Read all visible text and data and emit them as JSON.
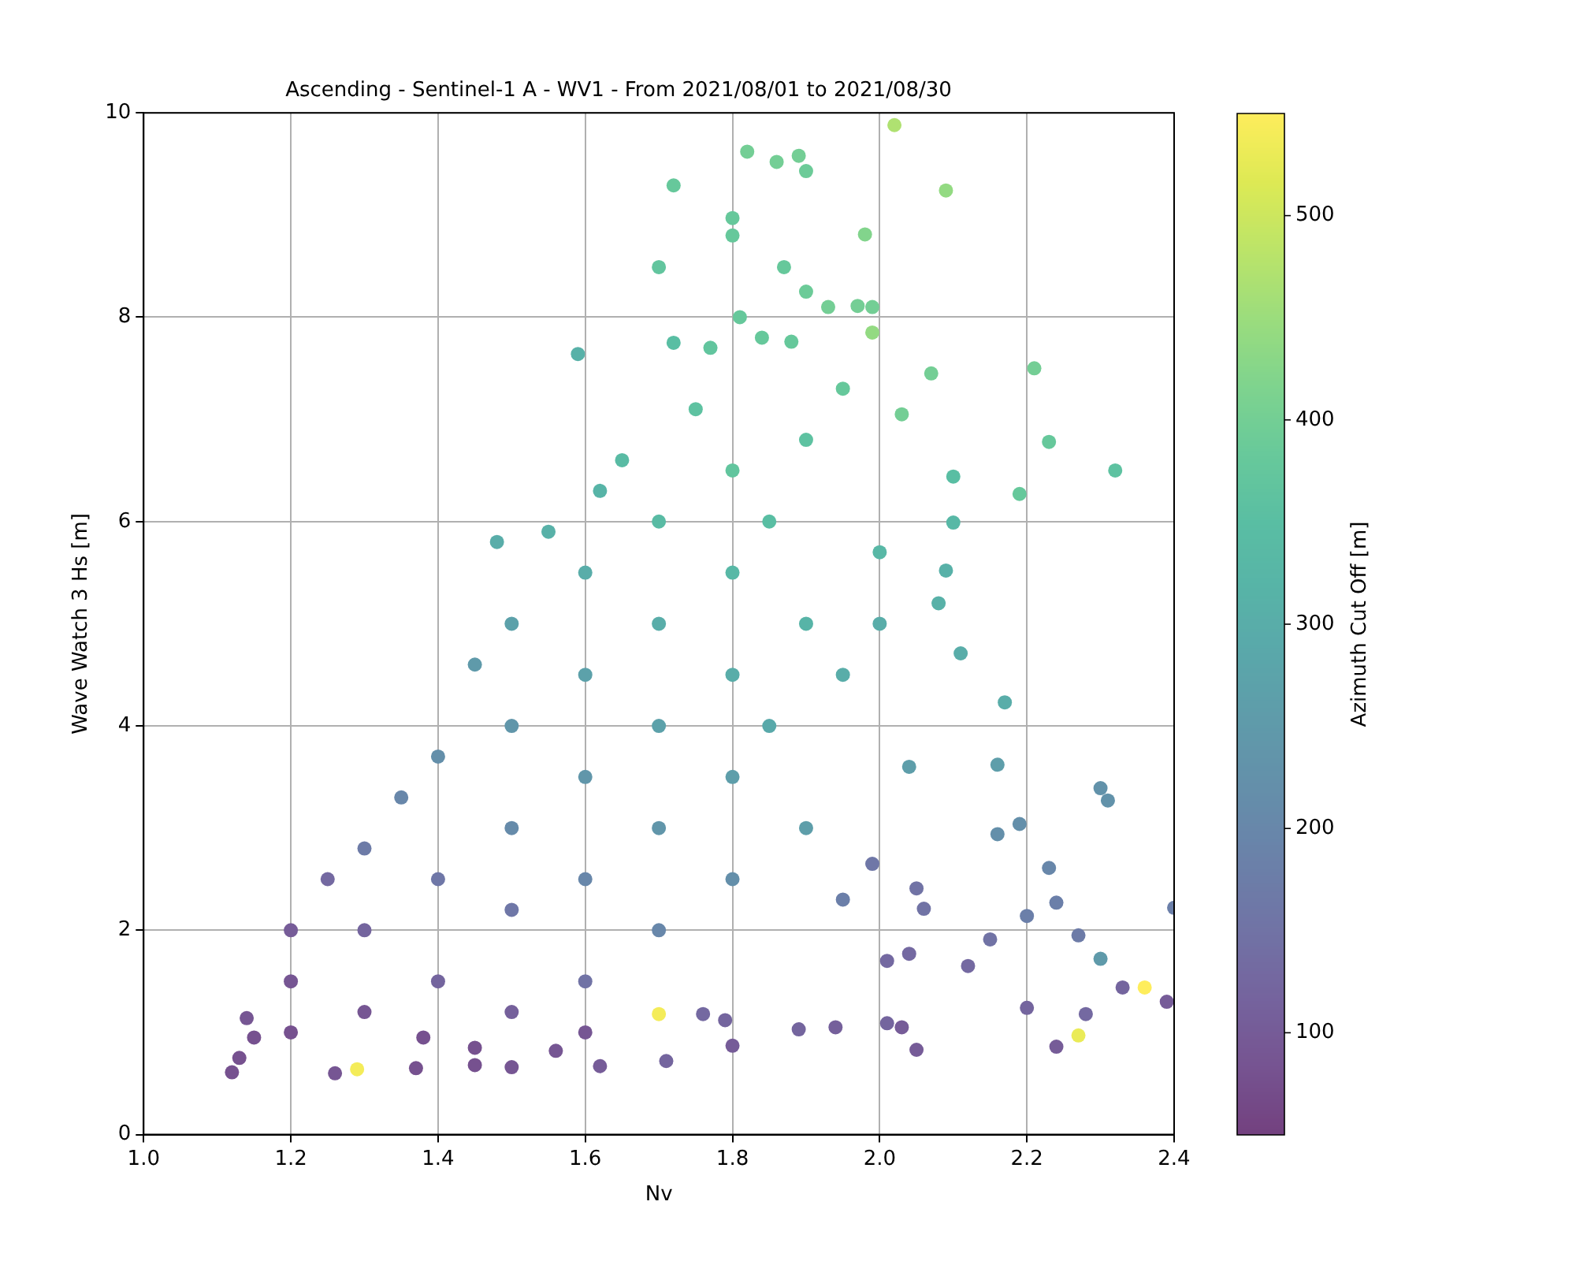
{
  "chart_data": {
    "type": "scatter",
    "title": "Ascending - Sentinel-1 A - WV1 - From 2021/08/01 to 2021/08/30",
    "xlabel": "Nv",
    "ylabel": "Wave Watch 3 Hs [m]",
    "clabel": "Azimuth Cut Off [m]",
    "xlim": [
      1.0,
      2.4
    ],
    "xticks": [
      {
        "value": 1.0,
        "label": "1.0"
      },
      {
        "value": 1.2,
        "label": "1.2"
      },
      {
        "value": 1.4,
        "label": "1.4"
      },
      {
        "value": 1.6,
        "label": "1.6"
      },
      {
        "value": 1.8,
        "label": "1.8"
      },
      {
        "value": 2.0,
        "label": "2.0"
      },
      {
        "value": 2.2,
        "label": "2.2"
      },
      {
        "value": 2.4,
        "label": "2.4"
      }
    ],
    "ylim": [
      0,
      10
    ],
    "yticks": [
      0,
      2,
      4,
      6,
      8,
      10
    ],
    "clim": [
      50,
      550
    ],
    "cticks": [
      100,
      200,
      300,
      400,
      500
    ],
    "grid": true,
    "legend": false,
    "marker": "circle",
    "x": [
      2.02,
      1.82,
      1.86,
      1.89,
      1.9,
      2.09,
      1.72,
      1.8,
      1.8,
      1.7,
      1.87,
      1.98,
      1.9,
      1.97,
      1.93,
      1.99,
      1.81,
      1.84,
      1.88,
      1.99,
      1.77,
      1.59,
      1.72,
      2.07,
      2.21,
      1.95,
      2.03,
      2.23,
      2.32,
      2.19,
      2.1,
      2.1,
      2.09,
      2.08,
      2.11,
      2.0,
      2.0,
      2.04,
      2.17,
      2.16,
      2.19,
      2.16,
      2.3,
      2.31,
      2.23,
      2.2,
      2.24,
      2.27,
      2.3,
      2.4,
      2.15,
      2.12,
      2.2,
      2.33,
      2.36,
      2.28,
      2.27,
      2.24,
      2.39,
      2.05,
      2.03,
      2.01,
      2.01,
      2.04,
      2.05,
      2.06,
      1.99,
      1.89,
      1.94,
      1.8,
      1.79,
      1.76,
      1.7,
      1.71,
      1.62,
      1.56,
      1.5,
      1.45,
      1.37,
      1.29,
      1.26,
      1.12,
      1.13,
      1.15,
      1.14,
      1.2,
      1.2,
      1.2,
      1.25,
      1.3,
      1.3,
      1.3,
      1.35,
      1.4,
      1.4,
      1.4,
      1.45,
      1.5,
      1.5,
      1.5,
      1.5,
      1.5,
      1.48,
      1.55,
      1.6,
      1.6,
      1.6,
      1.6,
      1.6,
      1.62,
      1.65,
      1.7,
      1.7,
      1.7,
      1.7,
      1.7,
      1.75,
      1.8,
      1.8,
      1.8,
      1.8,
      1.8,
      1.85,
      1.85,
      1.9,
      1.9,
      1.9,
      1.95,
      1.95,
      1.38,
      1.45,
      1.6
    ],
    "values": [
      9.88,
      9.62,
      9.52,
      9.58,
      9.43,
      9.24,
      9.29,
      8.97,
      8.8,
      8.49,
      8.49,
      8.81,
      8.25,
      8.11,
      8.1,
      8.1,
      8.0,
      7.8,
      7.76,
      7.85,
      7.7,
      7.64,
      7.75,
      7.45,
      7.5,
      7.3,
      7.05,
      6.78,
      6.5,
      6.27,
      6.44,
      5.99,
      5.52,
      5.2,
      4.71,
      5.7,
      5.0,
      3.6,
      4.23,
      3.62,
      3.04,
      2.94,
      3.39,
      3.27,
      2.61,
      2.14,
      2.27,
      1.95,
      1.72,
      2.22,
      1.91,
      1.65,
      1.24,
      1.44,
      1.44,
      1.18,
      0.97,
      0.86,
      1.3,
      0.83,
      1.05,
      1.09,
      1.7,
      1.77,
      2.41,
      2.21,
      2.65,
      1.03,
      1.05,
      0.87,
      1.12,
      1.18,
      1.18,
      0.72,
      0.67,
      0.82,
      0.66,
      0.68,
      0.65,
      0.64,
      0.6,
      0.61,
      0.75,
      0.95,
      1.14,
      1.0,
      1.5,
      2.0,
      2.5,
      1.2,
      2.0,
      2.8,
      3.3,
      1.5,
      2.5,
      3.7,
      4.6,
      1.2,
      2.2,
      3.0,
      4.0,
      5.0,
      5.8,
      5.9,
      1.5,
      2.5,
      3.5,
      4.5,
      5.5,
      6.3,
      6.6,
      2.0,
      3.0,
      4.0,
      5.0,
      6.0,
      7.1,
      2.5,
      3.5,
      4.5,
      5.5,
      6.5,
      4.0,
      6.0,
      3.0,
      5.0,
      6.8,
      4.5,
      2.3,
      0.95,
      0.85,
      1.0
    ],
    "cvalues": [
      470,
      400,
      400,
      400,
      390,
      440,
      380,
      380,
      380,
      370,
      380,
      420,
      390,
      400,
      400,
      400,
      380,
      380,
      380,
      440,
      370,
      310,
      350,
      400,
      400,
      380,
      400,
      380,
      360,
      380,
      350,
      330,
      310,
      310,
      300,
      330,
      300,
      260,
      300,
      260,
      220,
      220,
      230,
      230,
      200,
      180,
      180,
      170,
      250,
      180,
      150,
      130,
      120,
      120,
      550,
      130,
      530,
      100,
      100,
      100,
      100,
      120,
      130,
      130,
      150,
      150,
      160,
      120,
      110,
      100,
      120,
      130,
      540,
      120,
      100,
      90,
      90,
      80,
      80,
      540,
      90,
      80,
      80,
      80,
      90,
      80,
      90,
      100,
      130,
      90,
      120,
      170,
      200,
      120,
      160,
      220,
      250,
      110,
      160,
      210,
      240,
      270,
      300,
      310,
      150,
      200,
      240,
      270,
      300,
      320,
      340,
      200,
      240,
      270,
      300,
      340,
      360,
      220,
      260,
      300,
      330,
      370,
      290,
      350,
      260,
      320,
      360,
      300,
      180,
      80,
      80,
      90
    ]
  }
}
